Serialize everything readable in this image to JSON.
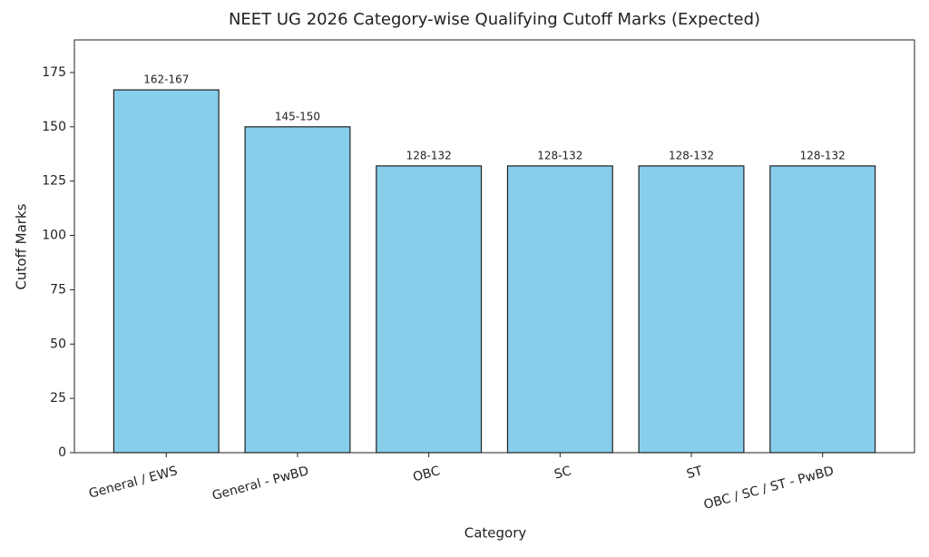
{
  "chart_data": {
    "type": "bar",
    "title": "NEET UG 2026 Category-wise Qualifying Cutoff Marks (Expected)",
    "x_label": "Category",
    "y_label": "Cutoff Marks",
    "categories": [
      "General / EWS",
      "General - PwBD",
      "OBC",
      "SC",
      "ST",
      "OBC / SC / ST - PwBD"
    ],
    "values": [
      167,
      150,
      132,
      132,
      132,
      132
    ],
    "value_labels": [
      "162-167",
      "145-150",
      "128-132",
      "128-132",
      "128-132",
      "128-132"
    ],
    "color": "#87ceeb",
    "edgecolor": "#222222",
    "ylim": [
      0,
      190
    ],
    "yticks": [
      0,
      25,
      50,
      75,
      100,
      125,
      150,
      175
    ],
    "grid": false
  }
}
